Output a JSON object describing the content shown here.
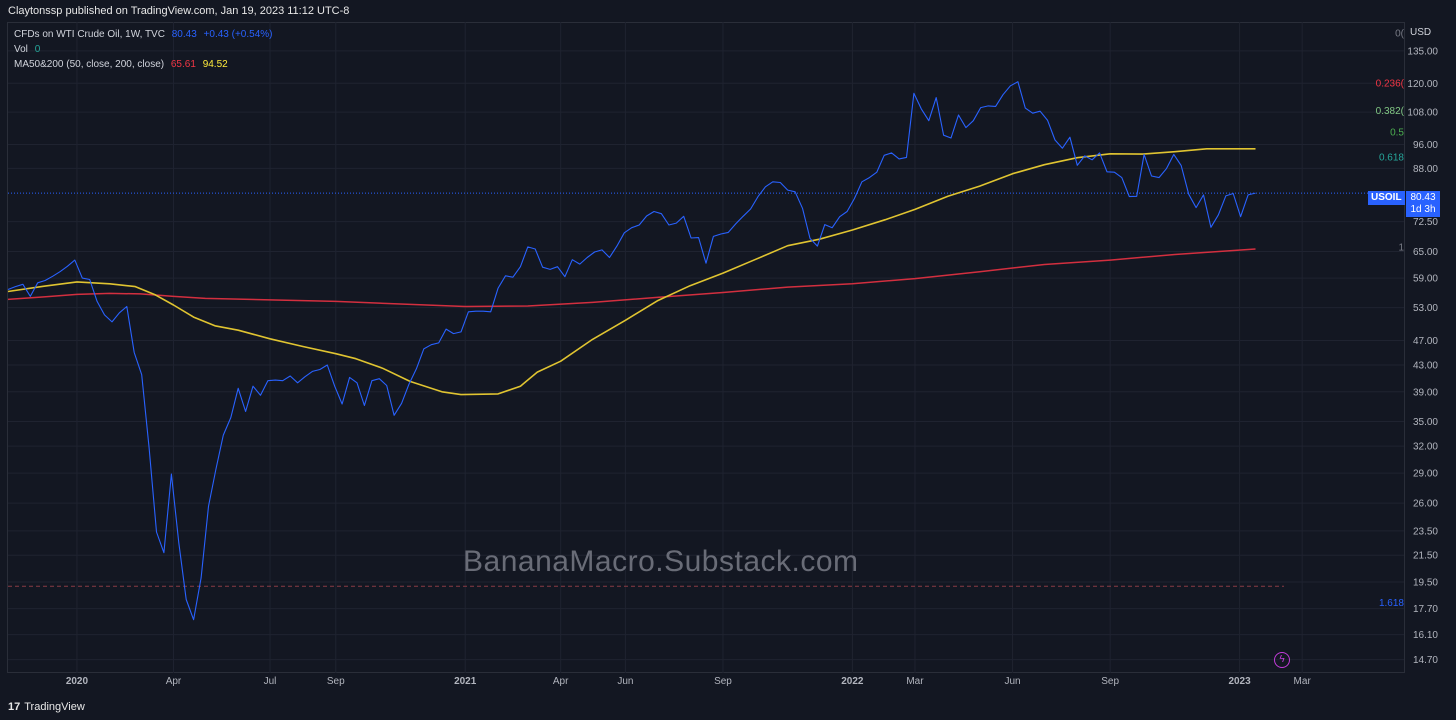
{
  "header": {
    "published": "Claytonssp published on TradingView.com, Jan 19, 2023 11:12 UTC-8"
  },
  "legend": {
    "symbol": "CFDs on WTI Crude Oil, 1W, TVC",
    "last": "80.43",
    "change": "+0.43 (+0.54%)",
    "vol_label": "Vol",
    "vol_value": "0",
    "ma_label": "MA50&200 (50, close, 200, close)",
    "ma200_value": "65.61",
    "ma50_value": "94.52"
  },
  "watermark": "BananaMacro.Substack.com",
  "price_label": {
    "ticker": "USOIL",
    "price": "80.43",
    "countdown": "1d 3h"
  },
  "footer": {
    "brand": "TradingView",
    "logo_glyph": "17"
  },
  "colors": {
    "price": "#2962ff",
    "ma50": "#e0c431",
    "ma200": "#d32f3f",
    "fib_0": "#787b86",
    "fib_236": "#f23645",
    "fib_382": "#81c784",
    "fib_5": "#4caf50",
    "fib_618": "#26a69a",
    "fib_1": "#787b86",
    "fib_1618": "#2962ff",
    "background": "#131722"
  },
  "chart_data": {
    "type": "line",
    "title": "",
    "y_axis_label": "USD",
    "log_scale": true,
    "ylim": [
      14.0,
      150.0
    ],
    "y_ticks": [
      135.0,
      120.0,
      108.0,
      96.0,
      88.0,
      72.5,
      65.0,
      59.0,
      53.0,
      47.0,
      43.0,
      39.0,
      35.0,
      32.0,
      29.0,
      26.0,
      23.5,
      21.5,
      19.5,
      17.7,
      16.1,
      14.7
    ],
    "y_tick_labels": [
      "135.00",
      "120.00",
      "108.00",
      "96.00",
      "88.00",
      "72.50",
      "65.00",
      "59.00",
      "53.00",
      "47.00",
      "43.00",
      "39.00",
      "35.00",
      "32.00",
      "29.00",
      "26.00",
      "23.50",
      "21.50",
      "19.50",
      "17.70",
      "16.10",
      "14.70"
    ],
    "x_ticks": [
      {
        "label": "2020",
        "date": "2020-01-01",
        "bold": true
      },
      {
        "label": "Apr",
        "date": "2020-04-01"
      },
      {
        "label": "Jul",
        "date": "2020-07-01"
      },
      {
        "label": "Sep",
        "date": "2020-09-01"
      },
      {
        "label": "2021",
        "date": "2021-01-01",
        "bold": true
      },
      {
        "label": "Apr",
        "date": "2021-04-01"
      },
      {
        "label": "Jun",
        "date": "2021-06-01"
      },
      {
        "label": "Sep",
        "date": "2021-09-01"
      },
      {
        "label": "2022",
        "date": "2022-01-01",
        "bold": true
      },
      {
        "label": "Mar",
        "date": "2022-03-01"
      },
      {
        "label": "Jun",
        "date": "2022-06-01"
      },
      {
        "label": "Sep",
        "date": "2022-09-01"
      },
      {
        "label": "2023",
        "date": "2023-01-01",
        "bold": true
      },
      {
        "label": "Mar",
        "date": "2023-03-01"
      }
    ],
    "xlim": [
      "2019-10-28",
      "2023-06-05"
    ],
    "fib_levels": [
      {
        "label": "0(",
        "value": 144.0,
        "color": "#787b86"
      },
      {
        "label": "0.236(",
        "value": 120.1,
        "color": "#f23645"
      },
      {
        "label": "0.382(",
        "value": 108.6,
        "color": "#81c784"
      },
      {
        "label": "0.5",
        "value": 100.5,
        "color": "#4caf50"
      },
      {
        "label": "0.618",
        "value": 91.8,
        "color": "#26a69a"
      },
      {
        "label": "1",
        "value": 66.1,
        "color": "#787b86"
      },
      {
        "label": "1.618",
        "value": 18.1,
        "color": "#2962ff"
      }
    ],
    "dashed_level": 19.2,
    "last_price_line": 80.43,
    "series": [
      {
        "name": "CFDs on WTI Crude Oil",
        "color": "#2962ff",
        "points": [
          [
            "2019-10-28",
            56.6
          ],
          [
            "2019-11-04",
            57.2
          ],
          [
            "2019-11-11",
            57.7
          ],
          [
            "2019-11-18",
            55.2
          ],
          [
            "2019-11-25",
            58.0
          ],
          [
            "2019-12-02",
            58.5
          ],
          [
            "2019-12-09",
            59.4
          ],
          [
            "2019-12-16",
            60.4
          ],
          [
            "2019-12-23",
            61.6
          ],
          [
            "2019-12-30",
            63.0
          ],
          [
            "2020-01-06",
            59.0
          ],
          [
            "2020-01-13",
            58.7
          ],
          [
            "2020-01-20",
            54.2
          ],
          [
            "2020-01-27",
            51.6
          ],
          [
            "2020-02-03",
            50.3
          ],
          [
            "2020-02-10",
            52.0
          ],
          [
            "2020-02-17",
            53.2
          ],
          [
            "2020-02-24",
            45.0
          ],
          [
            "2020-03-02",
            41.5
          ],
          [
            "2020-03-09",
            31.8
          ],
          [
            "2020-03-16",
            23.4
          ],
          [
            "2020-03-23",
            21.7
          ],
          [
            "2020-03-30",
            28.9
          ],
          [
            "2020-04-06",
            22.5
          ],
          [
            "2020-04-13",
            18.3
          ],
          [
            "2020-04-20",
            17.0
          ],
          [
            "2020-04-27",
            19.8
          ],
          [
            "2020-05-04",
            25.7
          ],
          [
            "2020-05-11",
            29.4
          ],
          [
            "2020-05-18",
            33.3
          ],
          [
            "2020-05-25",
            35.5
          ],
          [
            "2020-06-01",
            39.5
          ],
          [
            "2020-06-08",
            36.3
          ],
          [
            "2020-06-15",
            39.8
          ],
          [
            "2020-06-22",
            38.5
          ],
          [
            "2020-06-29",
            40.6
          ],
          [
            "2020-07-06",
            40.7
          ],
          [
            "2020-07-13",
            40.6
          ],
          [
            "2020-07-20",
            41.3
          ],
          [
            "2020-07-27",
            40.3
          ],
          [
            "2020-08-03",
            41.2
          ],
          [
            "2020-08-10",
            42.0
          ],
          [
            "2020-08-17",
            42.3
          ],
          [
            "2020-08-24",
            43.0
          ],
          [
            "2020-08-31",
            39.8
          ],
          [
            "2020-09-07",
            37.3
          ],
          [
            "2020-09-14",
            41.1
          ],
          [
            "2020-09-21",
            40.3
          ],
          [
            "2020-09-28",
            37.1
          ],
          [
            "2020-10-05",
            40.6
          ],
          [
            "2020-10-12",
            40.9
          ],
          [
            "2020-10-19",
            39.9
          ],
          [
            "2020-10-26",
            35.8
          ],
          [
            "2020-11-02",
            37.4
          ],
          [
            "2020-11-09",
            40.1
          ],
          [
            "2020-11-16",
            42.4
          ],
          [
            "2020-11-23",
            45.6
          ],
          [
            "2020-11-30",
            46.3
          ],
          [
            "2020-12-07",
            46.6
          ],
          [
            "2020-12-14",
            49.0
          ],
          [
            "2020-12-21",
            48.2
          ],
          [
            "2020-12-28",
            48.5
          ],
          [
            "2021-01-04",
            52.2
          ],
          [
            "2021-01-11",
            52.3
          ],
          [
            "2021-01-18",
            52.3
          ],
          [
            "2021-01-25",
            52.2
          ],
          [
            "2021-02-01",
            56.9
          ],
          [
            "2021-02-08",
            59.5
          ],
          [
            "2021-02-15",
            59.2
          ],
          [
            "2021-02-22",
            61.5
          ],
          [
            "2021-03-01",
            66.1
          ],
          [
            "2021-03-08",
            65.6
          ],
          [
            "2021-03-15",
            61.4
          ],
          [
            "2021-03-22",
            60.9
          ],
          [
            "2021-03-29",
            61.5
          ],
          [
            "2021-04-05",
            59.3
          ],
          [
            "2021-04-12",
            63.1
          ],
          [
            "2021-04-19",
            62.1
          ],
          [
            "2021-04-26",
            63.6
          ],
          [
            "2021-05-03",
            64.9
          ],
          [
            "2021-05-10",
            65.4
          ],
          [
            "2021-05-17",
            63.6
          ],
          [
            "2021-05-24",
            66.3
          ],
          [
            "2021-05-31",
            69.6
          ],
          [
            "2021-06-07",
            70.9
          ],
          [
            "2021-06-14",
            71.6
          ],
          [
            "2021-06-21",
            74.0
          ],
          [
            "2021-06-28",
            75.2
          ],
          [
            "2021-07-05",
            74.6
          ],
          [
            "2021-07-12",
            71.6
          ],
          [
            "2021-07-19",
            72.1
          ],
          [
            "2021-07-26",
            73.9
          ],
          [
            "2021-08-02",
            68.3
          ],
          [
            "2021-08-09",
            68.4
          ],
          [
            "2021-08-16",
            62.3
          ],
          [
            "2021-08-23",
            68.7
          ],
          [
            "2021-08-30",
            69.3
          ],
          [
            "2021-09-06",
            69.7
          ],
          [
            "2021-09-13",
            71.9
          ],
          [
            "2021-09-20",
            73.9
          ],
          [
            "2021-09-27",
            75.9
          ],
          [
            "2021-10-04",
            79.4
          ],
          [
            "2021-10-11",
            82.3
          ],
          [
            "2021-10-18",
            83.8
          ],
          [
            "2021-10-25",
            83.6
          ],
          [
            "2021-11-01",
            81.3
          ],
          [
            "2021-11-08",
            80.8
          ],
          [
            "2021-11-15",
            76.1
          ],
          [
            "2021-11-22",
            68.2
          ],
          [
            "2021-11-29",
            66.3
          ],
          [
            "2021-12-06",
            71.7
          ],
          [
            "2021-12-13",
            70.9
          ],
          [
            "2021-12-20",
            73.8
          ],
          [
            "2021-12-27",
            75.2
          ],
          [
            "2022-01-03",
            78.9
          ],
          [
            "2022-01-10",
            83.8
          ],
          [
            "2022-01-17",
            85.1
          ],
          [
            "2022-01-24",
            86.8
          ],
          [
            "2022-01-31",
            92.3
          ],
          [
            "2022-02-07",
            93.1
          ],
          [
            "2022-02-14",
            91.1
          ],
          [
            "2022-02-21",
            91.6
          ],
          [
            "2022-02-28",
            115.7
          ],
          [
            "2022-03-07",
            109.3
          ],
          [
            "2022-03-14",
            104.7
          ],
          [
            "2022-03-21",
            113.9
          ],
          [
            "2022-03-28",
            99.3
          ],
          [
            "2022-04-04",
            98.3
          ],
          [
            "2022-04-11",
            106.9
          ],
          [
            "2022-04-18",
            102.1
          ],
          [
            "2022-04-25",
            104.7
          ],
          [
            "2022-05-02",
            109.8
          ],
          [
            "2022-05-09",
            110.5
          ],
          [
            "2022-05-16",
            110.3
          ],
          [
            "2022-05-23",
            115.1
          ],
          [
            "2022-05-30",
            118.9
          ],
          [
            "2022-06-06",
            120.7
          ],
          [
            "2022-06-13",
            109.6
          ],
          [
            "2022-06-20",
            107.6
          ],
          [
            "2022-06-27",
            108.4
          ],
          [
            "2022-07-04",
            104.8
          ],
          [
            "2022-07-11",
            97.6
          ],
          [
            "2022-07-18",
            94.7
          ],
          [
            "2022-07-25",
            98.6
          ],
          [
            "2022-08-01",
            89.0
          ],
          [
            "2022-08-08",
            92.1
          ],
          [
            "2022-08-15",
            90.8
          ],
          [
            "2022-08-22",
            93.1
          ],
          [
            "2022-08-29",
            86.9
          ],
          [
            "2022-09-05",
            86.8
          ],
          [
            "2022-09-12",
            85.1
          ],
          [
            "2022-09-19",
            79.4
          ],
          [
            "2022-09-26",
            79.5
          ],
          [
            "2022-10-03",
            92.6
          ],
          [
            "2022-10-10",
            85.6
          ],
          [
            "2022-10-17",
            85.1
          ],
          [
            "2022-10-24",
            87.9
          ],
          [
            "2022-10-31",
            92.6
          ],
          [
            "2022-11-07",
            88.9
          ],
          [
            "2022-11-14",
            80.1
          ],
          [
            "2022-11-21",
            76.3
          ],
          [
            "2022-11-28",
            79.9
          ],
          [
            "2022-12-05",
            71.0
          ],
          [
            "2022-12-12",
            74.3
          ],
          [
            "2022-12-19",
            79.6
          ],
          [
            "2022-12-26",
            80.3
          ],
          [
            "2023-01-02",
            73.8
          ],
          [
            "2023-01-09",
            79.9
          ],
          [
            "2023-01-16",
            80.43
          ]
        ]
      },
      {
        "name": "MA50",
        "color": "#e0c431",
        "points": [
          [
            "2019-10-28",
            56.2
          ],
          [
            "2019-12-01",
            57.3
          ],
          [
            "2020-01-01",
            58.2
          ],
          [
            "2020-02-01",
            57.8
          ],
          [
            "2020-02-25",
            57.2
          ],
          [
            "2020-03-15",
            55.5
          ],
          [
            "2020-04-01",
            53.5
          ],
          [
            "2020-04-20",
            51.2
          ],
          [
            "2020-05-10",
            49.6
          ],
          [
            "2020-06-01",
            48.8
          ],
          [
            "2020-07-01",
            47.3
          ],
          [
            "2020-08-01",
            46.0
          ],
          [
            "2020-09-01",
            44.8
          ],
          [
            "2020-09-20",
            44.0
          ],
          [
            "2020-10-15",
            42.5
          ],
          [
            "2020-11-10",
            40.5
          ],
          [
            "2020-12-10",
            39.0
          ],
          [
            "2020-12-28",
            38.6
          ],
          [
            "2021-02-01",
            38.7
          ],
          [
            "2021-02-22",
            39.8
          ],
          [
            "2021-03-10",
            41.9
          ],
          [
            "2021-04-01",
            43.6
          ],
          [
            "2021-05-01",
            47.2
          ],
          [
            "2021-06-01",
            50.6
          ],
          [
            "2021-07-01",
            54.3
          ],
          [
            "2021-08-01",
            57.4
          ],
          [
            "2021-09-01",
            60.1
          ],
          [
            "2021-10-01",
            63.1
          ],
          [
            "2021-11-01",
            66.4
          ],
          [
            "2021-12-01",
            68.0
          ],
          [
            "2022-01-01",
            70.3
          ],
          [
            "2022-02-01",
            73.0
          ],
          [
            "2022-03-01",
            75.8
          ],
          [
            "2022-04-01",
            79.5
          ],
          [
            "2022-05-01",
            82.5
          ],
          [
            "2022-06-01",
            86.3
          ],
          [
            "2022-07-01",
            89.2
          ],
          [
            "2022-08-01",
            91.5
          ],
          [
            "2022-09-01",
            92.8
          ],
          [
            "2022-10-01",
            92.7
          ],
          [
            "2022-11-01",
            93.5
          ],
          [
            "2022-12-01",
            94.5
          ],
          [
            "2023-01-16",
            94.52
          ]
        ]
      },
      {
        "name": "MA200",
        "color": "#d32f3f",
        "points": [
          [
            "2019-10-28",
            54.6
          ],
          [
            "2019-12-01",
            55.1
          ],
          [
            "2020-01-01",
            55.6
          ],
          [
            "2020-02-01",
            55.8
          ],
          [
            "2020-03-01",
            55.7
          ],
          [
            "2020-04-01",
            55.2
          ],
          [
            "2020-05-01",
            54.8
          ],
          [
            "2020-07-01",
            54.5
          ],
          [
            "2020-09-01",
            54.2
          ],
          [
            "2020-11-01",
            53.7
          ],
          [
            "2021-01-01",
            53.2
          ],
          [
            "2021-03-01",
            53.3
          ],
          [
            "2021-05-01",
            54.0
          ],
          [
            "2021-07-01",
            55.0
          ],
          [
            "2021-09-01",
            56.0
          ],
          [
            "2021-11-01",
            57.1
          ],
          [
            "2022-01-01",
            57.8
          ],
          [
            "2022-03-01",
            58.9
          ],
          [
            "2022-05-01",
            60.4
          ],
          [
            "2022-07-01",
            62.0
          ],
          [
            "2022-09-01",
            63.0
          ],
          [
            "2022-11-01",
            64.3
          ],
          [
            "2023-01-16",
            65.61
          ]
        ]
      }
    ]
  }
}
